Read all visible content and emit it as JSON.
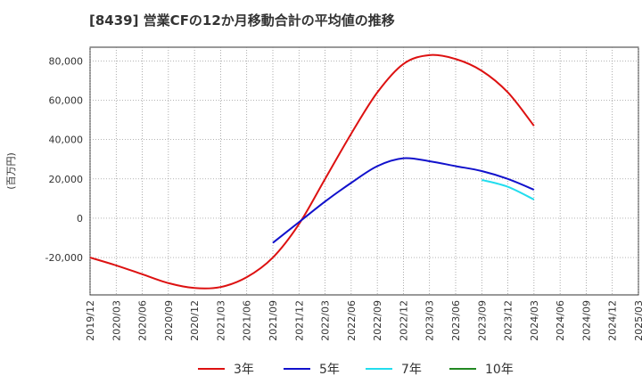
{
  "chart_data": {
    "type": "line",
    "title": "[8439]  営業CFの12か月移動合計の平均値の推移",
    "ylabel": "(百万円)",
    "xlabel": "",
    "ylim": [
      -39000,
      87000
    ],
    "yticks": [
      -20000,
      0,
      20000,
      40000,
      60000,
      80000
    ],
    "ytick_labels": [
      "-20,000",
      "0",
      "20,000",
      "40,000",
      "60,000",
      "80,000"
    ],
    "xlim": [
      "2019/12",
      "2025/03"
    ],
    "xtick_labels": [
      "2019/12",
      "2020/03",
      "2020/06",
      "2020/09",
      "2020/12",
      "2021/03",
      "2021/06",
      "2021/09",
      "2021/12",
      "2022/03",
      "2022/06",
      "2022/09",
      "2022/12",
      "2023/03",
      "2023/06",
      "2023/09",
      "2023/12",
      "2024/03",
      "2024/06",
      "2024/09",
      "2024/12",
      "2025/03"
    ],
    "grid": true,
    "legend_position": "bottom",
    "series": [
      {
        "name": "3年",
        "color": "#dd1111",
        "x": [
          "2019/12",
          "2020/03",
          "2020/06",
          "2020/09",
          "2020/12",
          "2021/03",
          "2021/06",
          "2021/09",
          "2021/12",
          "2022/03",
          "2022/06",
          "2022/09",
          "2022/12",
          "2023/03",
          "2023/06",
          "2023/09",
          "2023/12",
          "2024/03"
        ],
        "y": [
          -20000,
          -24000,
          -28500,
          -33000,
          -35500,
          -35000,
          -30000,
          -20000,
          -3000,
          20000,
          43000,
          64000,
          78500,
          83000,
          81000,
          75000,
          64000,
          47000
        ]
      },
      {
        "name": "5年",
        "color": "#1111cc",
        "x": [
          "2021/09",
          "2021/12",
          "2022/03",
          "2022/06",
          "2022/09",
          "2022/12",
          "2023/03",
          "2023/06",
          "2023/09",
          "2023/12",
          "2024/03"
        ],
        "y": [
          -12500,
          -2000,
          8500,
          18000,
          26500,
          30500,
          29000,
          26500,
          24000,
          20000,
          14500
        ]
      },
      {
        "name": "7年",
        "color": "#22ddee",
        "x": [
          "2023/09",
          "2023/12",
          "2024/03"
        ],
        "y": [
          19500,
          16000,
          9500
        ]
      },
      {
        "name": "10年",
        "color": "#228822",
        "x": [],
        "y": []
      }
    ]
  }
}
